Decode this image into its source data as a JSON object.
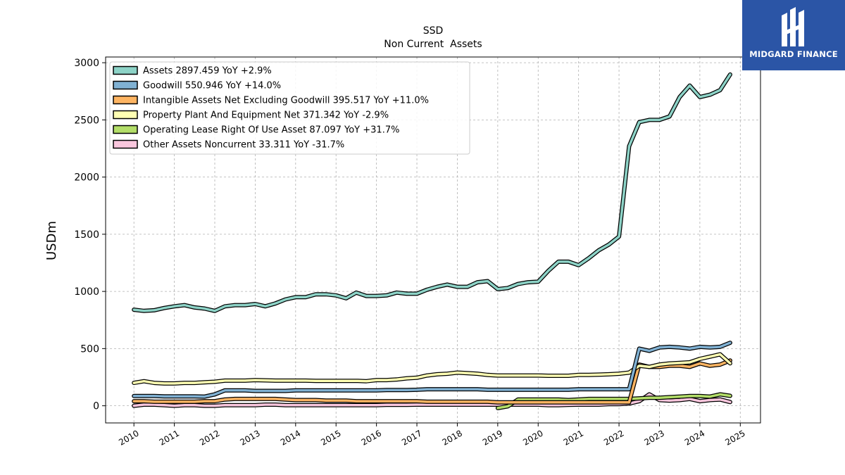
{
  "chart_data": {
    "type": "line",
    "title": "SSD",
    "subtitle": "Non Current  Assets",
    "ylabel": "USDm",
    "xlabel": "",
    "ylim": [
      -150,
      3050
    ],
    "xlim": [
      2009.3,
      2025.5
    ],
    "yticks": [
      0,
      500,
      1000,
      1500,
      2000,
      2500,
      3000
    ],
    "xticks": [
      2010,
      2011,
      2012,
      2013,
      2014,
      2015,
      2016,
      2017,
      2018,
      2019,
      2020,
      2021,
      2022,
      2023,
      2024,
      2025
    ],
    "grid": true,
    "legend_position": "top-left",
    "series": [
      {
        "name": "Other Assets Noncurrent",
        "legend": "Other Assets Noncurrent  33.311 YoY -31.7%",
        "color": "#f9c6dd",
        "x": [
          2010.0,
          2010.25,
          2010.5,
          2010.75,
          2011.0,
          2011.25,
          2011.5,
          2011.75,
          2012.0,
          2012.25,
          2012.5,
          2012.75,
          2013.0,
          2013.25,
          2013.5,
          2013.75,
          2014.0,
          2014.25,
          2014.5,
          2014.75,
          2015.0,
          2015.25,
          2015.5,
          2015.75,
          2016.0,
          2016.25,
          2016.5,
          2016.75,
          2017.0,
          2017.25,
          2017.5,
          2017.75,
          2018.0,
          2018.25,
          2018.5,
          2018.75,
          2019.0,
          2019.25,
          2019.5,
          2019.75,
          2020.0,
          2020.25,
          2020.5,
          2020.75,
          2021.0,
          2021.25,
          2021.5,
          2021.75,
          2022.0,
          2022.25,
          2022.5,
          2022.75,
          2023.0,
          2023.25,
          2023.5,
          2023.75,
          2024.0,
          2024.25,
          2024.5,
          2024.75
        ],
        "y": [
          0,
          10,
          10,
          5,
          0,
          5,
          5,
          0,
          0,
          5,
          5,
          5,
          5,
          10,
          10,
          5,
          5,
          5,
          5,
          5,
          5,
          5,
          5,
          5,
          5,
          8,
          8,
          8,
          10,
          10,
          10,
          10,
          10,
          10,
          10,
          10,
          10,
          10,
          10,
          10,
          10,
          5,
          5,
          8,
          10,
          10,
          10,
          15,
          15,
          20,
          40,
          100,
          50,
          45,
          50,
          60,
          40,
          50,
          55,
          33
        ]
      },
      {
        "name": "Operating Lease Right Of Use Asset",
        "legend": "Operating Lease Right Of Use Asset  87.097 YoY +31.7%",
        "color": "#b3de69",
        "x": [
          2019.0,
          2019.25,
          2019.5,
          2019.75,
          2020.0,
          2020.25,
          2020.5,
          2020.75,
          2021.0,
          2021.25,
          2021.5,
          2021.75,
          2022.0,
          2022.25,
          2022.5,
          2022.75,
          2023.0,
          2023.25,
          2023.5,
          2023.75,
          2024.0,
          2024.25,
          2024.5,
          2024.75
        ],
        "y": [
          -20,
          -5,
          55,
          55,
          55,
          55,
          55,
          50,
          55,
          60,
          60,
          60,
          60,
          60,
          65,
          70,
          70,
          75,
          80,
          85,
          85,
          80,
          100,
          87
        ]
      },
      {
        "name": "Intangible Assets Net Excluding Goodwill",
        "legend": "Intangible Assets Net Excluding Goodwill  395.517 YoY +11.0%",
        "color": "#fdb462",
        "x": [
          2010.0,
          2010.25,
          2010.5,
          2010.75,
          2011.0,
          2011.25,
          2011.5,
          2011.75,
          2012.0,
          2012.25,
          2012.5,
          2012.75,
          2013.0,
          2013.25,
          2013.5,
          2013.75,
          2014.0,
          2014.25,
          2014.5,
          2014.75,
          2015.0,
          2015.25,
          2015.5,
          2015.75,
          2016.0,
          2016.25,
          2016.5,
          2016.75,
          2017.0,
          2017.25,
          2017.5,
          2017.75,
          2018.0,
          2018.25,
          2018.5,
          2018.75,
          2019.0,
          2019.25,
          2019.5,
          2019.75,
          2020.0,
          2020.25,
          2020.5,
          2020.75,
          2021.0,
          2021.25,
          2021.5,
          2021.75,
          2022.0,
          2022.25,
          2022.5,
          2022.75,
          2023.0,
          2023.25,
          2023.5,
          2023.75,
          2024.0,
          2024.25,
          2024.5,
          2024.75
        ],
        "y": [
          40,
          40,
          35,
          35,
          35,
          35,
          35,
          40,
          40,
          55,
          60,
          60,
          60,
          60,
          60,
          55,
          50,
          50,
          50,
          45,
          45,
          45,
          40,
          40,
          40,
          40,
          40,
          40,
          40,
          35,
          35,
          35,
          35,
          35,
          35,
          35,
          30,
          30,
          30,
          30,
          30,
          30,
          30,
          30,
          30,
          30,
          30,
          30,
          30,
          30,
          360,
          340,
          340,
          350,
          350,
          340,
          370,
          350,
          360,
          396
        ]
      },
      {
        "name": "Property Plant And Equipment Net",
        "legend": "Property Plant And Equipment Net  371.342 YoY -2.9%",
        "color": "#ffffb3",
        "x": [
          2010.0,
          2010.25,
          2010.5,
          2010.75,
          2011.0,
          2011.25,
          2011.5,
          2011.75,
          2012.0,
          2012.25,
          2012.5,
          2012.75,
          2013.0,
          2013.25,
          2013.5,
          2013.75,
          2014.0,
          2014.25,
          2014.5,
          2014.75,
          2015.0,
          2015.25,
          2015.5,
          2015.75,
          2016.0,
          2016.25,
          2016.5,
          2016.75,
          2017.0,
          2017.25,
          2017.5,
          2017.75,
          2018.0,
          2018.25,
          2018.5,
          2018.75,
          2019.0,
          2019.25,
          2019.5,
          2019.75,
          2020.0,
          2020.25,
          2020.5,
          2020.75,
          2021.0,
          2021.25,
          2021.5,
          2021.75,
          2022.0,
          2022.25,
          2022.5,
          2022.75,
          2023.0,
          2023.25,
          2023.5,
          2023.75,
          2024.0,
          2024.25,
          2024.5,
          2024.75
        ],
        "y": [
          200,
          215,
          200,
          195,
          195,
          200,
          200,
          205,
          210,
          220,
          220,
          220,
          225,
          222,
          220,
          220,
          220,
          220,
          218,
          218,
          218,
          218,
          218,
          215,
          225,
          225,
          230,
          240,
          245,
          265,
          275,
          280,
          290,
          285,
          280,
          270,
          265,
          265,
          265,
          265,
          265,
          262,
          262,
          262,
          270,
          270,
          272,
          275,
          280,
          290,
          350,
          340,
          360,
          370,
          375,
          380,
          410,
          430,
          450,
          371
        ]
      },
      {
        "name": "Goodwill",
        "legend": "Goodwill  550.946 YoY +14.0%",
        "color": "#80b1d3",
        "x": [
          2010.0,
          2010.25,
          2010.5,
          2010.75,
          2011.0,
          2011.25,
          2011.5,
          2011.75,
          2012.0,
          2012.25,
          2012.5,
          2012.75,
          2013.0,
          2013.25,
          2013.5,
          2013.75,
          2014.0,
          2014.25,
          2014.5,
          2014.75,
          2015.0,
          2015.25,
          2015.5,
          2015.75,
          2016.0,
          2016.25,
          2016.5,
          2016.75,
          2017.0,
          2017.25,
          2017.5,
          2017.75,
          2018.0,
          2018.25,
          2018.5,
          2018.75,
          2019.0,
          2019.25,
          2019.5,
          2019.75,
          2020.0,
          2020.25,
          2020.5,
          2020.75,
          2021.0,
          2021.25,
          2021.5,
          2021.75,
          2022.0,
          2022.25,
          2022.5,
          2022.75,
          2023.0,
          2023.25,
          2023.5,
          2023.75,
          2024.0,
          2024.25,
          2024.5,
          2024.75
        ],
        "y": [
          85,
          85,
          85,
          82,
          82,
          82,
          82,
          80,
          100,
          135,
          135,
          135,
          130,
          130,
          130,
          130,
          135,
          135,
          135,
          135,
          135,
          135,
          135,
          135,
          135,
          138,
          138,
          138,
          140,
          145,
          145,
          145,
          145,
          145,
          145,
          140,
          140,
          140,
          140,
          140,
          140,
          140,
          140,
          140,
          145,
          145,
          145,
          145,
          145,
          145,
          500,
          480,
          510,
          515,
          510,
          500,
          515,
          510,
          515,
          551
        ]
      },
      {
        "name": "Assets",
        "legend": "Assets  2897.459 YoY +2.9%",
        "color": "#8dd3c7",
        "x": [
          2010.0,
          2010.25,
          2010.5,
          2010.75,
          2011.0,
          2011.25,
          2011.5,
          2011.75,
          2012.0,
          2012.25,
          2012.5,
          2012.75,
          2013.0,
          2013.25,
          2013.5,
          2013.75,
          2014.0,
          2014.25,
          2014.5,
          2014.75,
          2015.0,
          2015.25,
          2015.5,
          2015.75,
          2016.0,
          2016.25,
          2016.5,
          2016.75,
          2017.0,
          2017.25,
          2017.5,
          2017.75,
          2018.0,
          2018.25,
          2018.5,
          2018.75,
          2019.0,
          2019.25,
          2019.5,
          2019.75,
          2020.0,
          2020.25,
          2020.5,
          2020.75,
          2021.0,
          2021.25,
          2021.5,
          2021.75,
          2022.0,
          2022.25,
          2022.5,
          2022.75,
          2023.0,
          2023.25,
          2023.5,
          2023.75,
          2024.0,
          2024.25,
          2024.5,
          2024.75
        ],
        "y": [
          840,
          830,
          835,
          855,
          870,
          880,
          860,
          850,
          830,
          870,
          880,
          880,
          890,
          870,
          895,
          930,
          950,
          950,
          975,
          975,
          965,
          940,
          990,
          960,
          960,
          965,
          990,
          980,
          980,
          1015,
          1040,
          1060,
          1040,
          1040,
          1080,
          1090,
          1020,
          1030,
          1065,
          1080,
          1085,
          1180,
          1260,
          1260,
          1230,
          1290,
          1360,
          1410,
          1480,
          2270,
          2480,
          2500,
          2500,
          2530,
          2700,
          2800,
          2700,
          2720,
          2760,
          2897
        ]
      }
    ]
  },
  "logo": {
    "text": "MIDGARD FINANCE",
    "bg_color": "#2b55a6",
    "text_color": "#ffffff"
  }
}
